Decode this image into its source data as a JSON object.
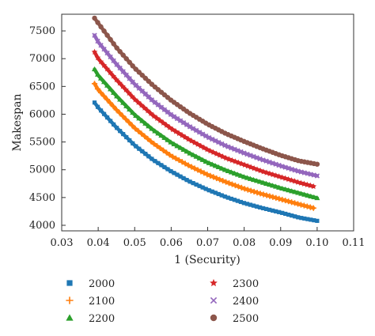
{
  "chart_data": {
    "type": "scatter",
    "title": "",
    "xlabel": "1 (Security)",
    "ylabel": "Makespan",
    "xlim": [
      0.03,
      0.11
    ],
    "ylim": [
      3900,
      7800
    ],
    "xticks": [
      0.03,
      0.04,
      0.05,
      0.06,
      0.07,
      0.08,
      0.09,
      0.1,
      0.11
    ],
    "xtick_labels": [
      "0.03",
      "0.04",
      "0.05",
      "0.06",
      "0.07",
      "0.08",
      "0.09",
      "0.10",
      "0.11"
    ],
    "yticks": [
      4000,
      4500,
      5000,
      5500,
      6000,
      6500,
      7000,
      7500
    ],
    "ytick_labels": [
      "4000",
      "4500",
      "5000",
      "5500",
      "6000",
      "6500",
      "7000",
      "7500"
    ],
    "grid": false,
    "legend_position": "bottom",
    "series": [
      {
        "name": "2000",
        "marker": "square",
        "color": "#1f77b4",
        "x": [
          0.039,
          0.04,
          0.045,
          0.05,
          0.055,
          0.06,
          0.065,
          0.07,
          0.075,
          0.08,
          0.085,
          0.09,
          0.095,
          0.1
        ],
        "y": [
          6210,
          6120,
          5760,
          5440,
          5180,
          4970,
          4790,
          4640,
          4510,
          4400,
          4310,
          4230,
          4140,
          4080
        ]
      },
      {
        "name": "2100",
        "marker": "plus",
        "color": "#ff7f0e",
        "x": [
          0.039,
          0.04,
          0.045,
          0.05,
          0.055,
          0.06,
          0.065,
          0.07,
          0.075,
          0.08,
          0.085,
          0.09,
          0.095,
          0.099
        ],
        "y": [
          6550,
          6440,
          6080,
          5750,
          5480,
          5250,
          5070,
          4910,
          4780,
          4660,
          4560,
          4470,
          4380,
          4310
        ]
      },
      {
        "name": "2200",
        "marker": "triangle",
        "color": "#2ca02c",
        "x": [
          0.039,
          0.04,
          0.045,
          0.05,
          0.055,
          0.06,
          0.065,
          0.07,
          0.075,
          0.08,
          0.085,
          0.09,
          0.095,
          0.1
        ],
        "y": [
          6810,
          6700,
          6330,
          5990,
          5720,
          5490,
          5300,
          5130,
          4990,
          4870,
          4770,
          4670,
          4580,
          4490
        ]
      },
      {
        "name": "2300",
        "marker": "star",
        "color": "#d62728",
        "x": [
          0.039,
          0.04,
          0.045,
          0.05,
          0.055,
          0.06,
          0.065,
          0.07,
          0.075,
          0.08,
          0.085,
          0.09,
          0.095,
          0.099
        ],
        "y": [
          7120,
          7000,
          6620,
          6270,
          5980,
          5740,
          5540,
          5360,
          5210,
          5090,
          4970,
          4870,
          4770,
          4700
        ]
      },
      {
        "name": "2400",
        "marker": "x",
        "color": "#9467bd",
        "x": [
          0.039,
          0.04,
          0.045,
          0.05,
          0.055,
          0.06,
          0.065,
          0.07,
          0.075,
          0.08,
          0.085,
          0.09,
          0.095,
          0.1
        ],
        "y": [
          7420,
          7300,
          6900,
          6540,
          6240,
          5990,
          5780,
          5590,
          5430,
          5300,
          5180,
          5070,
          4970,
          4890
        ]
      },
      {
        "name": "2500",
        "marker": "circle",
        "color": "#8c564b",
        "x": [
          0.039,
          0.04,
          0.045,
          0.05,
          0.055,
          0.06,
          0.065,
          0.07,
          0.075,
          0.08,
          0.085,
          0.09,
          0.095,
          0.1
        ],
        "y": [
          7730,
          7640,
          7200,
          6830,
          6520,
          6250,
          6020,
          5820,
          5650,
          5510,
          5380,
          5260,
          5160,
          5100
        ]
      }
    ]
  }
}
